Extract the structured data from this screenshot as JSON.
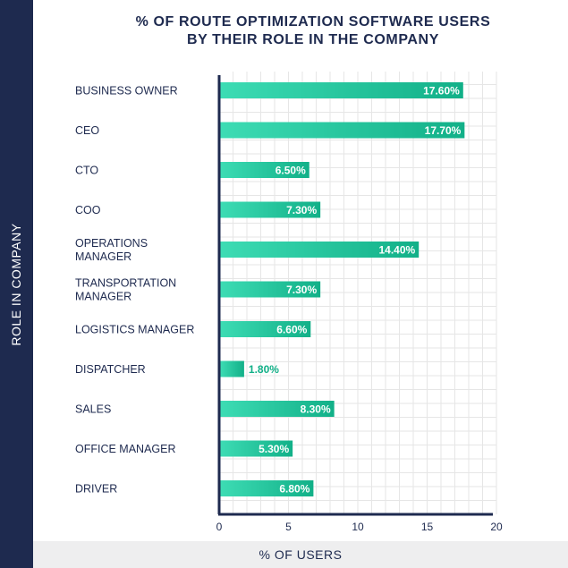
{
  "page": {
    "title_line1": "% OF ROUTE OPTIMIZATION SOFTWARE USERS",
    "title_line2": "BY THEIR ROLE IN THE COMPANY",
    "y_axis_label": "ROLE IN COMPANY",
    "x_axis_label": "% OF USERS"
  },
  "colors": {
    "navy": "#1e2a4f",
    "bar_start": "#3ddcb4",
    "bar_end": "#12b088",
    "label_inside": "#ffffff",
    "label_outside": "#12b088",
    "grid": "#e6e6e6",
    "category_text": "#1e2a4f"
  },
  "chart_data": {
    "type": "bar",
    "orientation": "horizontal",
    "title": "% OF ROUTE OPTIMIZATION SOFTWARE USERS BY THEIR ROLE IN THE COMPANY",
    "xlabel": "% OF USERS",
    "ylabel": "ROLE IN COMPANY",
    "xlim": [
      0,
      20
    ],
    "xticks": [
      0,
      5,
      10,
      15,
      20
    ],
    "grid": true,
    "categories": [
      [
        "BUSINESS OWNER"
      ],
      [
        "CEO"
      ],
      [
        "CTO"
      ],
      [
        "COO"
      ],
      [
        "OPERATIONS",
        "MANAGER"
      ],
      [
        "TRANSPORTATION",
        "MANAGER"
      ],
      [
        "LOGISTICS MANAGER"
      ],
      [
        "DISPATCHER"
      ],
      [
        "SALES"
      ],
      [
        "OFFICE MANAGER"
      ],
      [
        "DRIVER"
      ]
    ],
    "values": [
      17.6,
      17.7,
      6.5,
      7.3,
      14.4,
      7.3,
      6.6,
      1.8,
      8.3,
      5.3,
      6.8
    ],
    "value_labels": [
      "17.60%",
      "17.70%",
      "6.50%",
      "7.30%",
      "14.40%",
      "7.30%",
      "6.60%",
      "1.80%",
      "8.30%",
      "5.30%",
      "6.80%"
    ]
  }
}
